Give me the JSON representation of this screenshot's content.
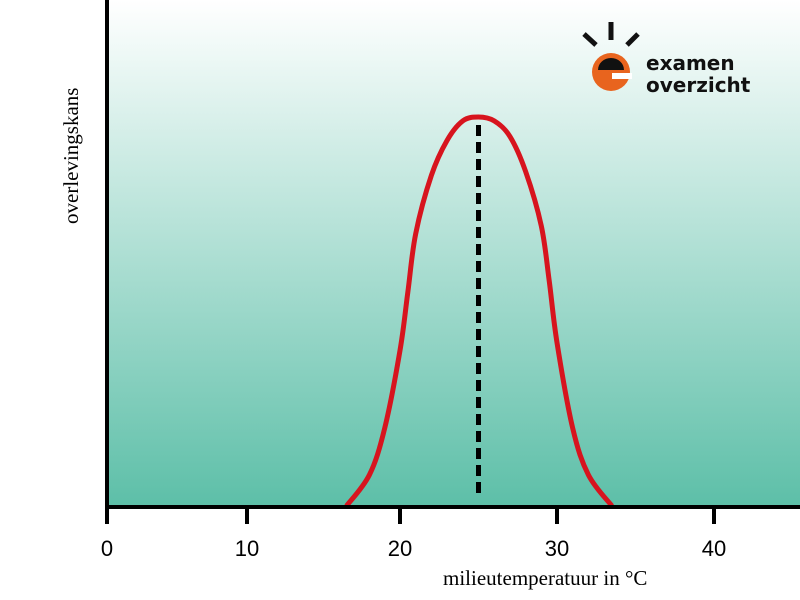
{
  "chart_data": {
    "type": "line",
    "title": "",
    "xlabel": "milieutemperatuur in °C",
    "ylabel": "overlevingskans",
    "xlim": [
      0,
      45
    ],
    "ylim": [
      0,
      1
    ],
    "xticks": [
      "0",
      "10",
      "20",
      "30",
      "40"
    ],
    "grid": false,
    "series": [
      {
        "color": "#d7141e",
        "x": [
          16.5,
          18,
          19,
          20,
          20.5,
          21,
          22,
          23,
          24,
          25,
          26,
          27,
          28,
          29,
          29.5,
          30,
          31,
          32,
          33.5
        ],
        "y": [
          0,
          0.08,
          0.2,
          0.4,
          0.55,
          0.7,
          0.85,
          0.94,
          0.99,
          1,
          0.99,
          0.95,
          0.86,
          0.72,
          0.58,
          0.42,
          0.2,
          0.08,
          0
        ]
      }
    ],
    "annotations": [
      {
        "type": "dashed-vertical-line",
        "x": 25,
        "color": "#000000"
      }
    ],
    "background_gradient": [
      "#ffffff",
      "#5dbfa8"
    ]
  },
  "logo": {
    "line1": "examen",
    "line2": "overzicht",
    "accent": "#e8641e"
  }
}
